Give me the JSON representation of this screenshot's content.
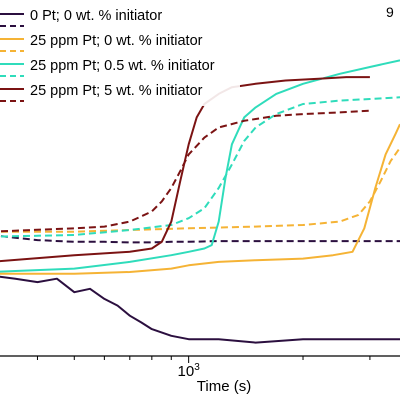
{
  "chart_data": {
    "type": "line",
    "title": "",
    "corner_label": "9",
    "xlabel": "Time (s)",
    "ylabel": "",
    "x_scale": "log",
    "xlim": [
      300,
      3600
    ],
    "ylim": [
      0,
      1
    ],
    "x_ticks": [
      {
        "value": 1000,
        "base": "10",
        "exponent": "3"
      }
    ],
    "grid": false,
    "legend_position": "top-left",
    "series": [
      {
        "name": "0 Pt; 0 wt. % initiator",
        "color": "#2b0f3f",
        "style": "dashed",
        "x": [
          300,
          400,
          500,
          600,
          700,
          800,
          900,
          1000,
          1200,
          1500,
          2000,
          2500,
          3000,
          3600
        ],
        "y": [
          0.36,
          0.345,
          0.34,
          0.34,
          0.338,
          0.338,
          0.34,
          0.34,
          0.342,
          0.342,
          0.342,
          0.342,
          0.342,
          0.342
        ]
      },
      {
        "name": "0 Pt; 0 wt. % initiator",
        "color": "#2b0f3f",
        "style": "solid",
        "x": [
          300,
          350,
          400,
          450,
          500,
          550,
          600,
          650,
          700,
          750,
          800,
          900,
          1000,
          1200,
          1500,
          2000,
          2500,
          3000,
          3600
        ],
        "y": [
          0.24,
          0.23,
          0.22,
          0.23,
          0.19,
          0.2,
          0.17,
          0.15,
          0.12,
          0.1,
          0.08,
          0.06,
          0.05,
          0.05,
          0.04,
          0.05,
          0.05,
          0.05,
          0.05
        ]
      },
      {
        "name": "25 ppm Pt; 0 wt. % initiator",
        "color": "#f5b335",
        "style": "dashed",
        "x": [
          300,
          500,
          700,
          1000,
          1500,
          2000,
          2500,
          2800,
          3000,
          3200,
          3400,
          3600
        ],
        "y": [
          0.37,
          0.37,
          0.375,
          0.38,
          0.385,
          0.39,
          0.4,
          0.42,
          0.46,
          0.52,
          0.58,
          0.62
        ]
      },
      {
        "name": "25 ppm Pt; 0 wt. % initiator",
        "color": "#f5b335",
        "style": "solid",
        "x": [
          300,
          500,
          700,
          900,
          1000,
          1200,
          1500,
          2000,
          2400,
          2700,
          2900,
          3100,
          3300,
          3500,
          3600
        ],
        "y": [
          0.245,
          0.245,
          0.25,
          0.26,
          0.27,
          0.28,
          0.285,
          0.29,
          0.3,
          0.31,
          0.38,
          0.5,
          0.6,
          0.66,
          0.69
        ]
      },
      {
        "name": "25 ppm Pt; 0.5 wt. % initiator",
        "color": "#2fdcbb",
        "style": "dashed",
        "x": [
          300,
          500,
          700,
          900,
          1000,
          1100,
          1200,
          1300,
          1400,
          1500,
          1700,
          2000,
          2500,
          3000,
          3600
        ],
        "y": [
          0.355,
          0.36,
          0.375,
          0.39,
          0.41,
          0.44,
          0.5,
          0.57,
          0.64,
          0.68,
          0.72,
          0.75,
          0.76,
          0.765,
          0.77
        ]
      },
      {
        "name": "25 ppm Pt; 0.5 wt. % initiator",
        "color": "#2fdcbb",
        "style": "solid",
        "x": [
          300,
          500,
          700,
          900,
          1000,
          1100,
          1150,
          1200,
          1250,
          1300,
          1400,
          1500,
          1700,
          2000,
          2500,
          3000,
          3600
        ],
        "y": [
          0.25,
          0.26,
          0.28,
          0.3,
          0.31,
          0.32,
          0.33,
          0.4,
          0.53,
          0.63,
          0.71,
          0.74,
          0.78,
          0.81,
          0.84,
          0.86,
          0.88
        ]
      },
      {
        "name": "25 ppm Pt; 5 wt. % initiator",
        "color": "#7b1313",
        "style": "dashed",
        "x": [
          300,
          500,
          600,
          700,
          800,
          850,
          900,
          950,
          1000,
          1100,
          1200,
          1400,
          1700,
          2000,
          2500,
          3000
        ],
        "y": [
          0.37,
          0.38,
          0.385,
          0.4,
          0.43,
          0.46,
          0.5,
          0.55,
          0.6,
          0.65,
          0.68,
          0.7,
          0.715,
          0.72,
          0.725,
          0.73
        ]
      },
      {
        "name": "25 ppm Pt; 5 wt. % initiator",
        "color": "#7b1313",
        "style": "solid",
        "x": [
          300,
          500,
          700,
          800,
          850,
          900,
          950,
          1000,
          1050,
          1100,
          1200,
          1300,
          1500,
          1800,
          2200,
          2600,
          3000
        ],
        "y": [
          0.28,
          0.3,
          0.31,
          0.32,
          0.34,
          0.4,
          0.52,
          0.63,
          0.71,
          0.75,
          0.78,
          0.8,
          0.81,
          0.82,
          0.825,
          0.83,
          0.83
        ]
      }
    ]
  }
}
